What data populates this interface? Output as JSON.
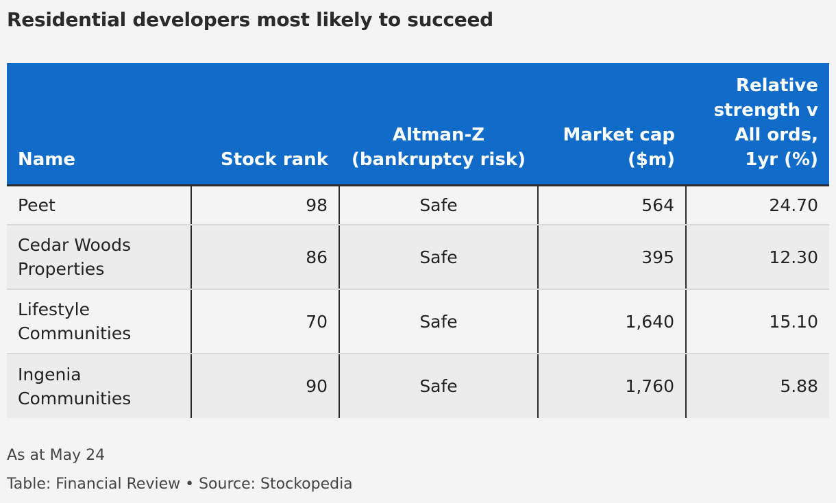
{
  "title": "Residential developers most likely to succeed",
  "colors": {
    "header_bg": "#116cc9",
    "header_text": "#ffffff",
    "row_odd": "#f4f4f4",
    "row_even": "#ececec"
  },
  "chart_data": {
    "type": "table",
    "title": "Residential developers most likely to succeed",
    "columns": [
      "Name",
      "Stock rank",
      "Altman-Z (bankruptcy risk)",
      "Market cap ($m)",
      "Relative strength v All ords, 1yr (%)"
    ],
    "rows": [
      {
        "name": "Peet",
        "stock_rank": "98",
        "altman_z": "Safe",
        "market_cap": "564",
        "relative_strength": "24.70"
      },
      {
        "name": "Cedar Woods Properties",
        "stock_rank": "86",
        "altman_z": "Safe",
        "market_cap": "395",
        "relative_strength": "12.30"
      },
      {
        "name": "Lifestyle Communities",
        "stock_rank": "70",
        "altman_z": "Safe",
        "market_cap": "1,640",
        "relative_strength": "15.10"
      },
      {
        "name": "Ingenia Communities",
        "stock_rank": "90",
        "altman_z": "Safe",
        "market_cap": "1,760",
        "relative_strength": "5.88"
      }
    ]
  },
  "note": "As at May 24",
  "source": "Table: Financial Review • Source: Stockopedia"
}
